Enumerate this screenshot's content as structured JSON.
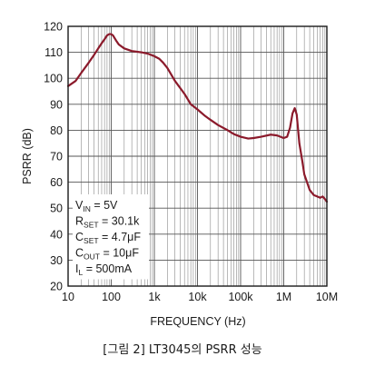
{
  "caption": "[그림 2] LT3045의 PSRR 성능",
  "chart_data": {
    "type": "line",
    "title": "",
    "xlabel": "FREQUENCY (Hz)",
    "ylabel": "PSRR (dB)",
    "xscale": "log",
    "xlim": [
      10,
      10000000
    ],
    "ylim": [
      20,
      120
    ],
    "grid": true,
    "x_ticks": [
      10,
      100,
      1000,
      10000,
      100000,
      1000000,
      10000000
    ],
    "x_tick_labels": [
      "10",
      "100",
      "1k",
      "10k",
      "100k",
      "1M",
      "10M"
    ],
    "y_ticks": [
      20,
      30,
      40,
      50,
      60,
      70,
      80,
      90,
      100,
      110,
      120
    ],
    "y_tick_labels": [
      "20",
      "30",
      "40",
      "50",
      "60",
      "70",
      "80",
      "90",
      "100",
      "110",
      "120"
    ],
    "line_color": "#8b1a2b",
    "series": [
      {
        "x": [
          10,
          15,
          20,
          30,
          40,
          50,
          60,
          70,
          80,
          90,
          100,
          110,
          130,
          150,
          200,
          300,
          500,
          700,
          1000,
          1300,
          1600,
          2000,
          3000,
          5000,
          7000,
          10000,
          15000,
          20000,
          30000,
          50000,
          70000,
          100000,
          150000,
          200000,
          300000,
          500000,
          700000,
          1000000,
          1200000,
          1400000,
          1600000,
          1800000,
          2000000,
          2300000,
          2700000,
          3000000,
          4000000,
          5000000,
          6000000,
          7000000,
          8000000,
          9000000,
          10000000
        ],
        "y": [
          97,
          99,
          102,
          106,
          109,
          111.5,
          113.5,
          115,
          116.5,
          117,
          117,
          116.5,
          114.5,
          113,
          111.5,
          110.5,
          110,
          109.5,
          108.5,
          107.5,
          106,
          104,
          99,
          94,
          90,
          88,
          85.5,
          84,
          82,
          80,
          78.5,
          77.5,
          76.8,
          77,
          77.5,
          78.3,
          78,
          77,
          77.5,
          81,
          86.5,
          88.5,
          86,
          75,
          68,
          63,
          57,
          55,
          54.5,
          54,
          54.5,
          53.5,
          52.5
        ]
      }
    ],
    "annotation_lines": [
      [
        "V",
        "IN",
        " = 5V"
      ],
      [
        "R",
        "SET",
        " = 30.1k"
      ],
      [
        "C",
        "SET",
        " = 4.7μF"
      ],
      [
        "C",
        "OUT",
        " = 10μF"
      ],
      [
        "I",
        "L",
        " = 500mA"
      ]
    ]
  }
}
